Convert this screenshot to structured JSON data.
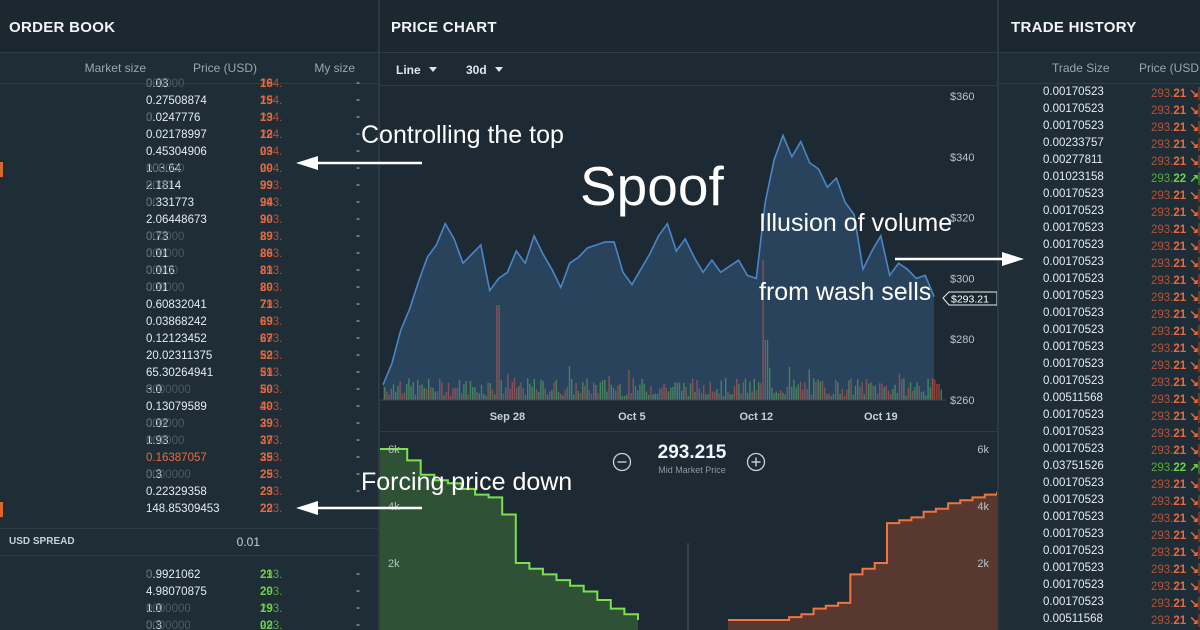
{
  "order_book": {
    "title": "ORDER BOOK",
    "columns": {
      "market_size": "Market size",
      "price": "Price (USD)",
      "my_size": "My size"
    },
    "asks": [
      {
        "size": "0.03",
        "pad": "000000",
        "price": "294.",
        "pdec": "16",
        "my": "-"
      },
      {
        "size": "0.27508874",
        "pad": "",
        "price": "294.",
        "pdec": "15",
        "my": "-"
      },
      {
        "size": "0.0247776",
        "pad": "0",
        "price": "294.",
        "pdec": "13",
        "my": "-"
      },
      {
        "size": "0.02178997",
        "pad": "",
        "price": "294.",
        "pdec": "12",
        "my": "-"
      },
      {
        "size": "0.45304906",
        "pad": "",
        "price": "294.",
        "pdec": "03",
        "my": "-"
      },
      {
        "size": "103.64",
        "pad": "000000",
        "price": "294.",
        "pdec": "00",
        "my": "-"
      },
      {
        "size": "2.1814",
        "pad": "0000",
        "price": "293.",
        "pdec": "99",
        "my": "-"
      },
      {
        "size": "0.331773",
        "pad": "00",
        "price": "293.",
        "pdec": "94",
        "my": "-"
      },
      {
        "size": "2.06448673",
        "pad": "",
        "price": "293.",
        "pdec": "90",
        "my": "-"
      },
      {
        "size": "0.73",
        "pad": "000000",
        "price": "293.",
        "pdec": "89",
        "my": "-"
      },
      {
        "size": "0.01",
        "pad": "000000",
        "price": "293.",
        "pdec": "86",
        "my": "-"
      },
      {
        "size": "0.016",
        "pad": "00000",
        "price": "293.",
        "pdec": "81",
        "my": "-"
      },
      {
        "size": "0.01",
        "pad": "000000",
        "price": "293.",
        "pdec": "80",
        "my": "-"
      },
      {
        "size": "0.60832041",
        "pad": "",
        "price": "293.",
        "pdec": "71",
        "my": "-"
      },
      {
        "size": "0.03868242",
        "pad": "",
        "price": "293.",
        "pdec": "69",
        "my": "-"
      },
      {
        "size": "0.12123452",
        "pad": "",
        "price": "293.",
        "pdec": "67",
        "my": "-"
      },
      {
        "size": "20.02311375",
        "pad": "",
        "price": "293.",
        "pdec": "52",
        "my": "-"
      },
      {
        "size": "65.30264941",
        "pad": "",
        "price": "293.",
        "pdec": "51",
        "my": "-"
      },
      {
        "size": "3.0",
        "pad": "0000000",
        "price": "293.",
        "pdec": "50",
        "my": "-"
      },
      {
        "size": "0.13079589",
        "pad": "",
        "price": "293.",
        "pdec": "40",
        "my": "-"
      },
      {
        "size": "0.02",
        "pad": "000000",
        "price": "293.",
        "pdec": "39",
        "my": "-"
      },
      {
        "size": "1.93",
        "pad": "000000",
        "price": "293.",
        "pdec": "37",
        "my": "-"
      },
      {
        "size": "0.16387057",
        "pad": "",
        "price": "293.",
        "pdec": "35",
        "my": "-"
      },
      {
        "size": "0.3",
        "pad": "0000000",
        "price": "293.",
        "pdec": "25",
        "my": "-"
      },
      {
        "size": "0.22329358",
        "pad": "",
        "price": "293.",
        "pdec": "23",
        "my": "-"
      },
      {
        "size": "148.85309453",
        "pad": "",
        "price": "293.",
        "pdec": "22",
        "my": "-"
      }
    ],
    "spread_label": "USD SPREAD",
    "spread_value": "0.01",
    "bids": [
      {
        "size": "0.9921062",
        "pad": "0",
        "price": "293.",
        "pdec": "21",
        "my": "-"
      },
      {
        "size": "4.98070875",
        "pad": "",
        "price": "293.",
        "pdec": "20",
        "my": "-"
      },
      {
        "size": "1.0",
        "pad": "0000000",
        "price": "293.",
        "pdec": "19",
        "my": "-"
      },
      {
        "size": "0.3",
        "pad": "0000000",
        "price": "293.",
        "pdec": "02",
        "my": "-"
      }
    ]
  },
  "price_chart": {
    "title": "PRICE CHART",
    "chart_type_label": "Line",
    "range_label": "30d",
    "current_price_tag": "$293.21",
    "mid_market_price": "293.215",
    "mid_market_label": "Mid Market Price",
    "depth_y_labels": [
      "6k",
      "4k",
      "2k"
    ]
  },
  "chart_data": {
    "type": "line",
    "x_ticks": [
      "Sep 28",
      "Oct 5",
      "Oct 12",
      "Oct 19"
    ],
    "y_ticks": [
      "$360",
      "$340",
      "$320",
      "$300",
      "$280",
      "$260"
    ],
    "ylim": [
      260,
      360
    ],
    "x_range": [
      "Sep 21",
      "Oct 22"
    ],
    "x_tick_days": [
      7,
      14,
      21,
      28
    ],
    "total_days": 31.5,
    "series": [
      {
        "x_days": [
          0,
          0.5,
          1,
          1.5,
          2,
          2.5,
          3,
          3.5,
          4,
          4.5,
          5,
          5.5,
          6,
          6.5,
          7,
          7.5,
          8,
          8.5,
          9,
          9.5,
          10,
          10.5,
          11,
          11.5,
          12,
          12.5,
          13,
          13.5,
          14,
          14.5,
          15,
          15.5,
          16,
          16.5,
          17,
          17.5,
          18,
          18.5,
          19,
          19.5,
          20,
          20.5,
          21,
          21.5,
          22,
          22.5,
          23,
          23.5,
          24,
          24.5,
          25,
          25.5,
          26,
          26.5,
          27,
          27.5,
          28,
          28.5,
          29,
          29.5,
          30,
          30.5,
          31
        ],
        "values": [
          265,
          272,
          283,
          290,
          299,
          307,
          311,
          318,
          313,
          305,
          308,
          311,
          296,
          300,
          302,
          309,
          305,
          314,
          308,
          303,
          297,
          305,
          307,
          310,
          311,
          312,
          312,
          302,
          298,
          303,
          308,
          314,
          318,
          309,
          313,
          307,
          302,
          306,
          302,
          304,
          306,
          301,
          300,
          325,
          339,
          347,
          340,
          345,
          338,
          336,
          330,
          333,
          325,
          321,
          303,
          309,
          314,
          301,
          305,
          303,
          300,
          301,
          294
        ]
      }
    ],
    "volume_hint": "volume bars under line (red/green)"
  },
  "depth_chart": {
    "bids_depth_k": [
      6.0,
      6.0,
      5.6,
      5.1,
      4.9,
      4.8,
      4.6,
      4.4,
      4.3,
      3.7,
      2.0,
      1.8,
      1.6,
      1.4,
      1.2,
      1.0,
      0.7,
      0.4,
      0.2,
      0.0
    ],
    "asks_depth_k": [
      0.0,
      0.0,
      0.0,
      0.0,
      0.0,
      0.1,
      0.2,
      0.4,
      0.5,
      0.6,
      1.6,
      1.8,
      2.0,
      3.4,
      3.5,
      3.6,
      3.8,
      3.9,
      4.1,
      4.2,
      4.3,
      4.4,
      4.5
    ]
  },
  "trade_history": {
    "title": "TRADE HISTORY",
    "columns": {
      "trade_size": "Trade Size",
      "price": "Price (USD"
    },
    "trades": [
      {
        "size": "0.00170523",
        "price": "293.",
        "pdec": "21",
        "side": "sell"
      },
      {
        "size": "0.00170523",
        "price": "293.",
        "pdec": "21",
        "side": "sell"
      },
      {
        "size": "0.00170523",
        "price": "293.",
        "pdec": "21",
        "side": "sell"
      },
      {
        "size": "0.00233757",
        "price": "293.",
        "pdec": "21",
        "side": "sell"
      },
      {
        "size": "0.00277811",
        "price": "293.",
        "pdec": "21",
        "side": "sell"
      },
      {
        "size": "0.01023158",
        "price": "293.",
        "pdec": "22",
        "side": "buy"
      },
      {
        "size": "0.00170523",
        "price": "293.",
        "pdec": "21",
        "side": "sell"
      },
      {
        "size": "0.00170523",
        "price": "293.",
        "pdec": "21",
        "side": "sell"
      },
      {
        "size": "0.00170523",
        "price": "293.",
        "pdec": "21",
        "side": "sell"
      },
      {
        "size": "0.00170523",
        "price": "293.",
        "pdec": "21",
        "side": "sell"
      },
      {
        "size": "0.00170523",
        "price": "293.",
        "pdec": "21",
        "side": "sell"
      },
      {
        "size": "0.00170523",
        "price": "293.",
        "pdec": "21",
        "side": "sell"
      },
      {
        "size": "0.00170523",
        "price": "293.",
        "pdec": "21",
        "side": "sell"
      },
      {
        "size": "0.00170523",
        "price": "293.",
        "pdec": "21",
        "side": "sell"
      },
      {
        "size": "0.00170523",
        "price": "293.",
        "pdec": "21",
        "side": "sell"
      },
      {
        "size": "0.00170523",
        "price": "293.",
        "pdec": "21",
        "side": "sell"
      },
      {
        "size": "0.00170523",
        "price": "293.",
        "pdec": "21",
        "side": "sell"
      },
      {
        "size": "0.00170523",
        "price": "293.",
        "pdec": "21",
        "side": "sell"
      },
      {
        "size": "0.00511568",
        "price": "293.",
        "pdec": "21",
        "side": "sell"
      },
      {
        "size": "0.00170523",
        "price": "293.",
        "pdec": "21",
        "side": "sell"
      },
      {
        "size": "0.00170523",
        "price": "293.",
        "pdec": "21",
        "side": "sell"
      },
      {
        "size": "0.00170523",
        "price": "293.",
        "pdec": "21",
        "side": "sell"
      },
      {
        "size": "0.03751526",
        "price": "293.",
        "pdec": "22",
        "side": "buy"
      },
      {
        "size": "0.00170523",
        "price": "293.",
        "pdec": "21",
        "side": "sell"
      },
      {
        "size": "0.00170523",
        "price": "293.",
        "pdec": "21",
        "side": "sell"
      },
      {
        "size": "0.00170523",
        "price": "293.",
        "pdec": "21",
        "side": "sell"
      },
      {
        "size": "0.00170523",
        "price": "293.",
        "pdec": "21",
        "side": "sell"
      },
      {
        "size": "0.00170523",
        "price": "293.",
        "pdec": "21",
        "side": "sell"
      },
      {
        "size": "0.00170523",
        "price": "293.",
        "pdec": "21",
        "side": "sell"
      },
      {
        "size": "0.00170523",
        "price": "293.",
        "pdec": "21",
        "side": "sell"
      },
      {
        "size": "0.00170523",
        "price": "293.",
        "pdec": "21",
        "side": "sell"
      },
      {
        "size": "0.00511568",
        "price": "293.",
        "pdec": "21",
        "side": "sell"
      }
    ]
  },
  "annotations": {
    "controlling_top": "Controlling the top",
    "spoof": "Spoof",
    "illusion": "Illusion of volume",
    "wash": "from wash sells",
    "forcing": "Forcing price down"
  },
  "colors": {
    "ask": "#ea6a3d",
    "bid": "#6fd14a",
    "line": "#4a86c8",
    "bg": "#1e2b34"
  }
}
